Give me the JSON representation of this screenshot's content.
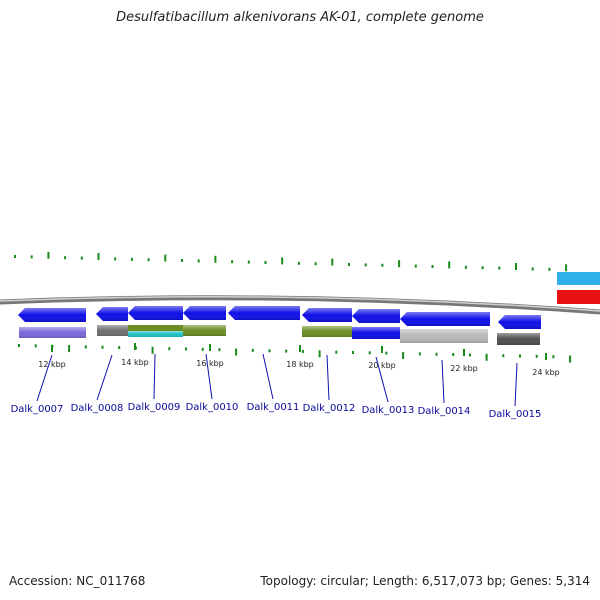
{
  "title": "Desulfatibacillum alkenivorans AK-01, complete genome",
  "footer": {
    "accession": "Accession: NC_011768",
    "stats": "Topology: circular; Length: 6,517,073 bp; Genes: 5,314"
  },
  "kbp_labels": [
    "12 kbp",
    "14 kbp",
    "16 kbp",
    "18 kbp",
    "20 kbp",
    "22 kbp",
    "24 kbp"
  ],
  "genes": [
    {
      "label": "Dalk_0007",
      "color": "#1010e8",
      "function_color": "#7b68d8"
    },
    {
      "label": "Dalk_0008",
      "color": "#1010e8",
      "function_color": "#707070"
    },
    {
      "label": "Dalk_0009",
      "color": "#1010e8",
      "function_color": "#20c0c8"
    },
    {
      "label": "Dalk_0010",
      "color": "#1010e8",
      "function_color": "#6b8e23"
    },
    {
      "label": "Dalk_0011",
      "color": "#1010e8",
      "function_color": ""
    },
    {
      "label": "Dalk_0012",
      "color": "#1010e8",
      "function_color": "#6b8e23"
    },
    {
      "label": "Dalk_0013",
      "color": "#1010e8",
      "function_color": "#1010e8"
    },
    {
      "label": "Dalk_0014",
      "color": "#1010e8",
      "function_color": "#b8b8b8"
    },
    {
      "label": "Dalk_0015",
      "color": "#1010e8",
      "function_color": "#505050"
    }
  ],
  "colors": {
    "backbone": "#8a8a8a",
    "gc_ticks": "#1a8a1a",
    "label_line": "#1010b0",
    "right_top_feature": "#30b0e8",
    "right_bottom_feature": "#e81010"
  }
}
